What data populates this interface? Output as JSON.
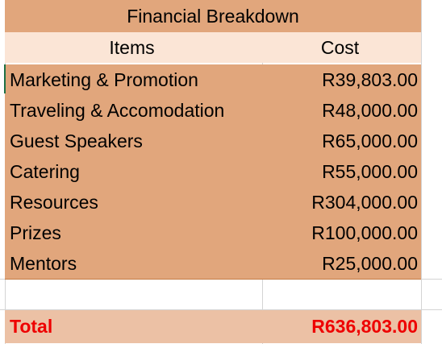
{
  "table": {
    "title": "Financial Breakdown",
    "header": {
      "items": "Items",
      "cost": "Cost"
    },
    "rows": [
      {
        "item": "Marketing & Promotion",
        "cost": "R39,803.00"
      },
      {
        "item": "Traveling & Accomodation",
        "cost": "R48,000.00"
      },
      {
        "item": "Guest Speakers",
        "cost": "R65,000.00"
      },
      {
        "item": "Catering",
        "cost": "R55,000.00"
      },
      {
        "item": "Resources",
        "cost": "R304,000.00"
      },
      {
        "item": "Prizes",
        "cost": "R100,000.00"
      },
      {
        "item": "Mentors",
        "cost": "R25,000.00"
      }
    ],
    "total": {
      "label": "Total",
      "value": "R636,803.00"
    }
  },
  "colors": {
    "title_fill": "#e1a67c",
    "header_fill": "#fbe5d6",
    "row_fill": "#e1a67c",
    "total_fill": "#ecc1a5",
    "total_text": "#ee0000",
    "gridline": "#d4d4d4"
  }
}
